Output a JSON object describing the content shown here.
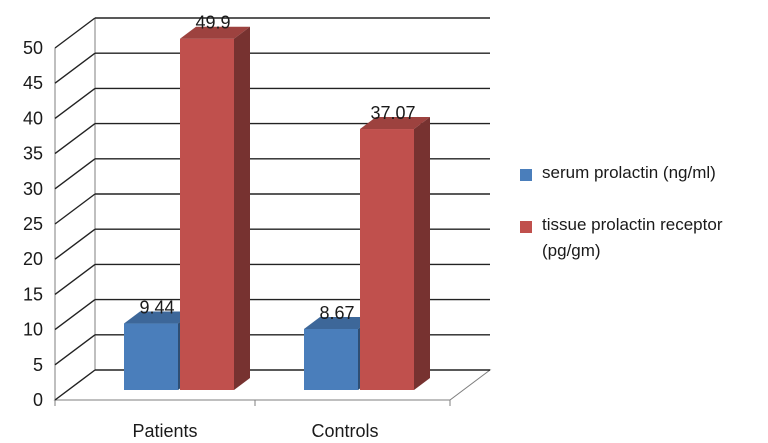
{
  "chart_data": {
    "type": "bar",
    "categories": [
      "Patients",
      "Controls"
    ],
    "series": [
      {
        "name": "serum prolactin (ng/ml)",
        "values": [
          9.44,
          8.67
        ],
        "color": "#4a7ebb"
      },
      {
        "name": "tissue prolactin receptor (pg/gm)",
        "values": [
          49.9,
          37.07
        ],
        "color": "#c0504d"
      }
    ],
    "data_labels": [
      [
        "9.44",
        "8.67"
      ],
      [
        "49.9",
        "37.07"
      ]
    ],
    "y_ticks": [
      "0",
      "5",
      "10",
      "15",
      "20",
      "25",
      "30",
      "35",
      "40",
      "45",
      "50"
    ],
    "ylim": [
      0,
      50
    ],
    "grid": true,
    "legend_position": "right",
    "style": "3d-clustered-column"
  }
}
